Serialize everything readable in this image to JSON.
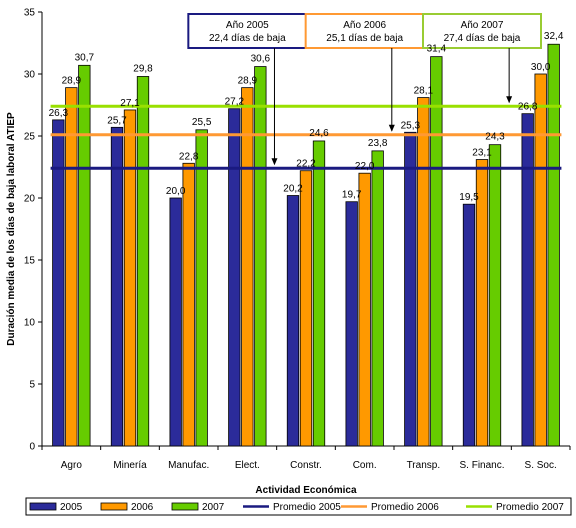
{
  "chart_data": {
    "type": "bar",
    "categories": [
      "Agro",
      "Minería",
      "Manufac.",
      "Elect.",
      "Constr.",
      "Com.",
      "Transp.",
      "S. Financ.",
      "S. Soc."
    ],
    "series": [
      {
        "name": "2005",
        "color": "#2b2b9a",
        "values": [
          26.3,
          25.7,
          20.0,
          27.2,
          20.2,
          19.7,
          25.3,
          19.5,
          26.8
        ],
        "labels": [
          "26,3",
          "25,7",
          "20,0",
          "27,2",
          "20,2",
          "19,7",
          "25,3",
          "19,5",
          "26,8"
        ]
      },
      {
        "name": "2006",
        "color": "#ff9900",
        "values": [
          28.9,
          27.1,
          22.8,
          28.9,
          22.2,
          22.0,
          28.1,
          23.1,
          30.0
        ],
        "labels": [
          "28,9",
          "27,1",
          "22,8",
          "28,9",
          "22,2",
          "22,0",
          "28,1",
          "23,1",
          "30,0"
        ]
      },
      {
        "name": "2007",
        "color": "#66cc00",
        "values": [
          30.7,
          29.8,
          25.5,
          30.6,
          24.6,
          23.8,
          31.4,
          24.3,
          32.4
        ],
        "labels": [
          "30,7",
          "29,8",
          "25,5",
          "30,6",
          "24,6",
          "23,8",
          "31,4",
          "24,3",
          "32,4"
        ]
      }
    ],
    "averages": [
      {
        "name": "Promedio 2005",
        "value": 22.4,
        "color": "#1a1a80"
      },
      {
        "name": "Promedio 2006",
        "value": 25.1,
        "color": "#ff9933"
      },
      {
        "name": "Promedio 2007",
        "value": 27.4,
        "color": "#99e000"
      }
    ],
    "annotations": [
      {
        "line1": "Año 2005",
        "line2": "22,4 días de baja",
        "border": "#1a1a80",
        "category_index": 3,
        "target": 22.4
      },
      {
        "line1": "Año 2006",
        "line2": "25,1 días de baja",
        "border": "#ff9933",
        "category_index": 5,
        "target": 25.1
      },
      {
        "line1": "Año 2007",
        "line2": "27,4 días de baja",
        "border": "#99cc33",
        "category_index": 7,
        "target": 27.4
      }
    ],
    "xlabel": "Actividad Económica",
    "ylabel": "Duración media de los días de baja laboral ATIEP",
    "ylim": [
      0,
      35
    ],
    "yticks": [
      0,
      5,
      10,
      15,
      20,
      25,
      30,
      35
    ],
    "grid": false,
    "legend_position": "bottom",
    "legend": [
      "2005",
      "2006",
      "2007",
      "Promedio 2005",
      "Promedio 2006",
      "Promedio 2007"
    ]
  }
}
